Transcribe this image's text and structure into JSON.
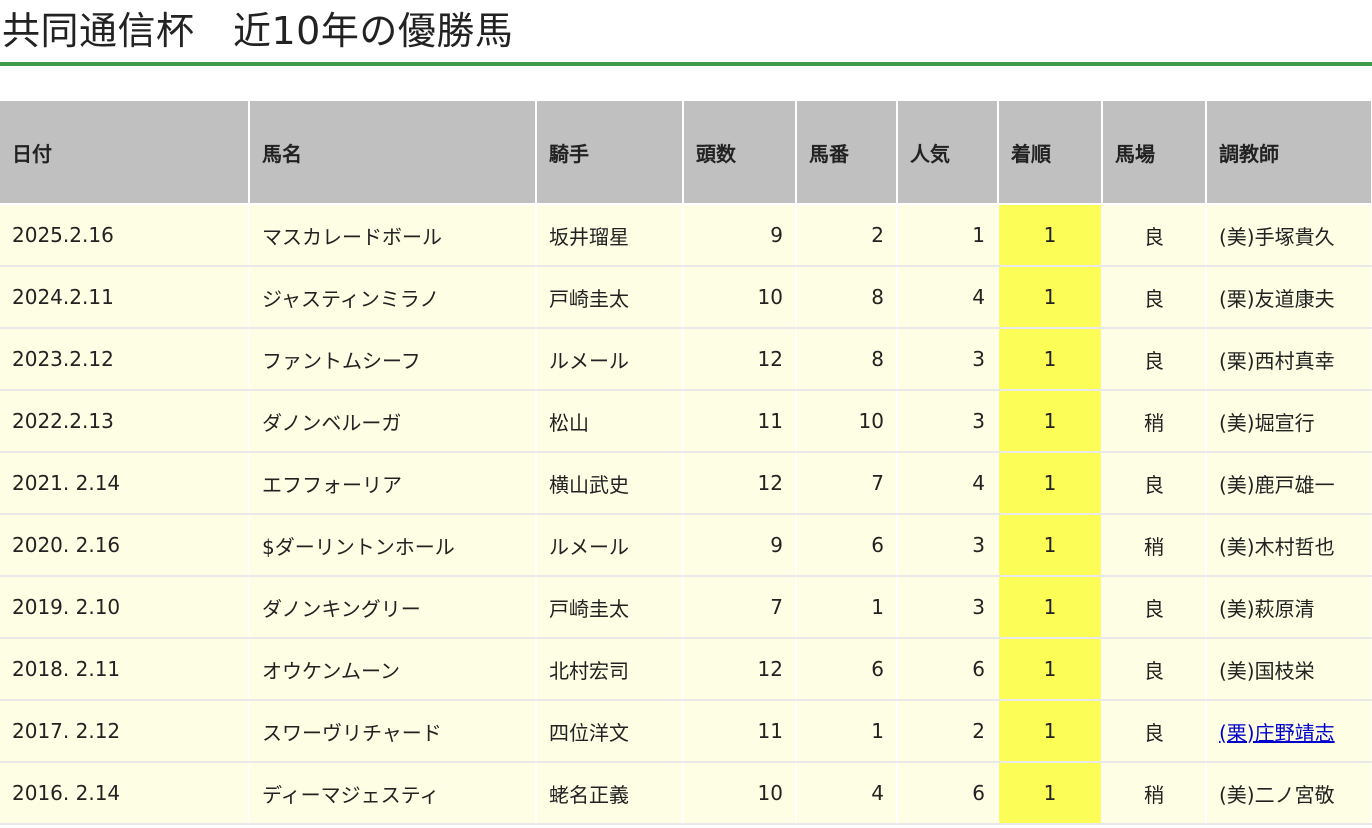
{
  "page": {
    "title": "共同通信杯　近10年の優勝馬"
  },
  "table": {
    "headers": [
      "日付",
      "馬名",
      "騎手",
      "頭数",
      "馬番",
      "人気",
      "着順",
      "馬場",
      "調教師"
    ],
    "rows": [
      {
        "date": "2025.2.16",
        "horse": "マスカレードボール",
        "jockey": "坂井瑠星",
        "runners": "9",
        "gate": "2",
        "popularity": "1",
        "finish": "1",
        "track": "良",
        "trainer": "(美)手塚貴久"
      },
      {
        "date": "2024.2.11",
        "horse": "ジャスティンミラノ",
        "jockey": "戸崎圭太",
        "runners": "10",
        "gate": "8",
        "popularity": "4",
        "finish": "1",
        "track": "良",
        "trainer": "(栗)友道康夫"
      },
      {
        "date": "2023.2.12",
        "horse": "ファントムシーフ",
        "jockey": "ルメール",
        "runners": "12",
        "gate": "8",
        "popularity": "3",
        "finish": "1",
        "track": "良",
        "trainer": "(栗)西村真幸"
      },
      {
        "date": "2022.2.13",
        "horse": "ダノンベルーガ",
        "jockey": "松山",
        "runners": "11",
        "gate": "10",
        "popularity": "3",
        "finish": "1",
        "track": "稍",
        "trainer": "(美)堀宣行"
      },
      {
        "date": "2021. 2.14",
        "horse": "エフフォーリア",
        "jockey": "横山武史",
        "runners": "12",
        "gate": "7",
        "popularity": "4",
        "finish": "1",
        "track": "良",
        "trainer": "(美)鹿戸雄一"
      },
      {
        "date": "2020. 2.16",
        "horse": "$ダーリントンホール",
        "jockey": "ルメール",
        "runners": "9",
        "gate": "6",
        "popularity": "3",
        "finish": "1",
        "track": "稍",
        "trainer": "(美)木村哲也"
      },
      {
        "date": "2019. 2.10",
        "horse": "ダノンキングリー",
        "jockey": "戸崎圭太",
        "runners": "7",
        "gate": "1",
        "popularity": "3",
        "finish": "1",
        "track": "良",
        "trainer": "(美)萩原清"
      },
      {
        "date": "2018. 2.11",
        "horse": "オウケンムーン",
        "jockey": "北村宏司",
        "runners": "12",
        "gate": "6",
        "popularity": "6",
        "finish": "1",
        "track": "良",
        "trainer": "(美)国枝栄"
      },
      {
        "date": "2017. 2.12",
        "horse": "スワーヴリチャード",
        "jockey": "四位洋文",
        "runners": "11",
        "gate": "1",
        "popularity": "2",
        "finish": "1",
        "track": "良",
        "trainer": "(栗)庄野靖志"
      },
      {
        "date": "2016. 2.14",
        "horse": "ディーマジェスティ",
        "jockey": "蛯名正義",
        "runners": "10",
        "gate": "4",
        "popularity": "6",
        "finish": "1",
        "track": "稍",
        "trainer": "(美)二ノ宮敬"
      }
    ]
  },
  "colors": {
    "title_rule": "#3f9a4a",
    "header_bg": "#c0c0c0",
    "row_bg": "#fefee4",
    "finish_highlight": "#fdfd57",
    "link": "#0000cc"
  }
}
